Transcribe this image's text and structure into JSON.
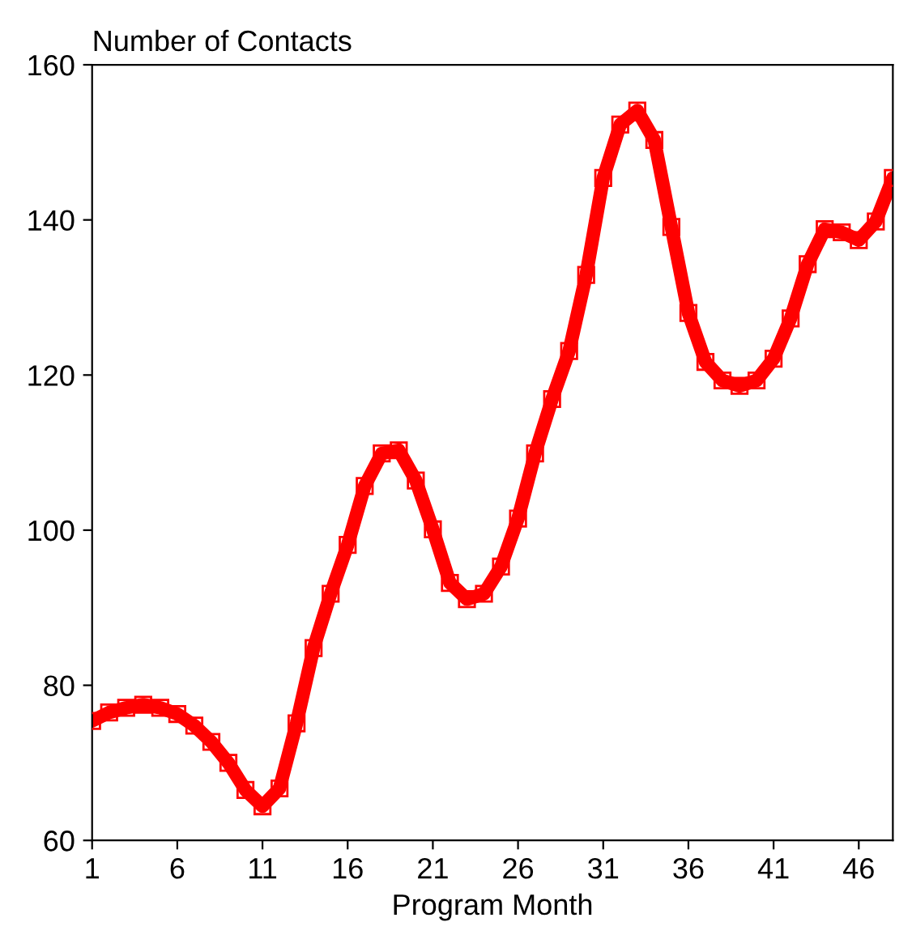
{
  "chart_data": {
    "type": "line",
    "ylabel": "Number of Contacts",
    "xlabel": "Program Month",
    "x": [
      1,
      2,
      3,
      4,
      5,
      6,
      7,
      8,
      9,
      10,
      11,
      12,
      13,
      14,
      15,
      16,
      17,
      18,
      19,
      20,
      21,
      22,
      23,
      24,
      25,
      26,
      27,
      28,
      29,
      30,
      31,
      32,
      33,
      34,
      35,
      36,
      37,
      38,
      39,
      40,
      41,
      42,
      43,
      44,
      45,
      46,
      47,
      48
    ],
    "series": [
      {
        "color": "#ff0000",
        "values": [
          75.4,
          76.5,
          77.1,
          77.5,
          77.1,
          76.3,
          74.8,
          72.7,
          70,
          66.5,
          64.4,
          66.7,
          75.1,
          84.8,
          91.8,
          98.1,
          105.7,
          109.9,
          110.3,
          106.4,
          100.1,
          93.2,
          91.1,
          91.8,
          95.3,
          101.5,
          109.9,
          116.9,
          123.1,
          132.9,
          145.4,
          152.3,
          154.1,
          150.3,
          139.1,
          128,
          121.7,
          119.3,
          118.6,
          119.3,
          122.1,
          127.3,
          134.3,
          138.8,
          138.4,
          137.4,
          139.8,
          145.4
        ]
      }
    ],
    "xlim": [
      1,
      48
    ],
    "xticks": [
      1,
      6,
      11,
      16,
      21,
      26,
      31,
      36,
      41,
      46
    ],
    "ylim": [
      60,
      160
    ],
    "yticks": [
      60,
      80,
      100,
      120,
      140,
      160
    ],
    "grid": false,
    "legend": false,
    "marker": "square",
    "line_style": "solid"
  }
}
